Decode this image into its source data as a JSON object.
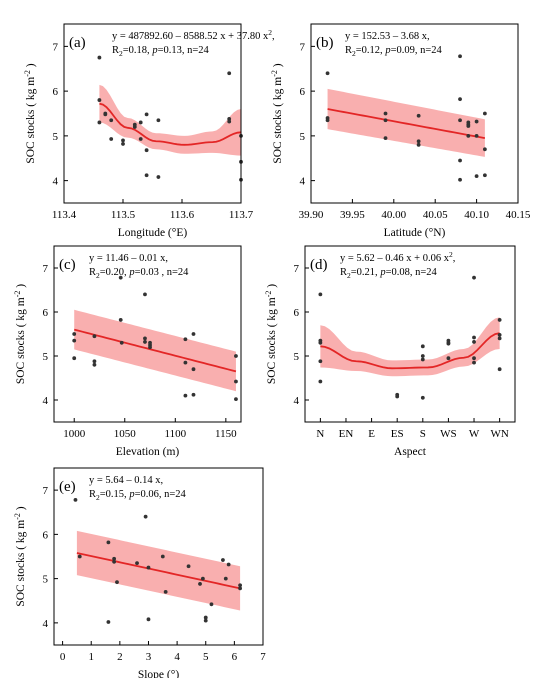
{
  "figure": {
    "ylabel_prefix": "SOC stocks",
    "ylabel_unit": "( kg m",
    "ylabel_exp": "-2",
    "ylabel_close": ")"
  },
  "chart_data": [
    {
      "type": "scatter",
      "panel_label": "(a)",
      "xlabel": "Longitude (°E)",
      "ylabel": "SOC stocks ( kg m-2 )",
      "xlim": [
        113.4,
        113.7
      ],
      "ylim": [
        3.5,
        7.5
      ],
      "xticks": [
        "113.4",
        "113.5",
        "113.6",
        "113.7"
      ],
      "yticks": [
        "4",
        "5",
        "6",
        "7"
      ],
      "equation": "y = 487892.60 – 8588.52 x + 37.80 x",
      "equation_sup": "2",
      "equation_tail": ",",
      "stats": "R2=0.18, p=0.13, n=24",
      "stats_parts": {
        "r2": "=0.18, ",
        "p": "=0.13, n=24"
      },
      "fit": {
        "kind": "quadratic",
        "xrange": [
          113.46,
          113.7
        ],
        "points_y": [
          5.72,
          5.18,
          4.88,
          4.8,
          4.86,
          5.08
        ],
        "ci_halfwidth": [
          0.42,
          0.22,
          0.18,
          0.2,
          0.24,
          0.52
        ]
      },
      "points": [
        [
          113.46,
          6.75
        ],
        [
          113.46,
          5.8
        ],
        [
          113.46,
          5.3
        ],
        [
          113.47,
          5.48
        ],
        [
          113.48,
          5.35
        ],
        [
          113.48,
          4.93
        ],
        [
          113.5,
          4.82
        ],
        [
          113.5,
          4.9
        ],
        [
          113.52,
          5.2
        ],
        [
          113.52,
          5.25
        ],
        [
          113.53,
          4.93
        ],
        [
          113.54,
          5.48
        ],
        [
          113.54,
          4.68
        ],
        [
          113.54,
          4.12
        ],
        [
          113.56,
          5.35
        ],
        [
          113.56,
          4.08
        ],
        [
          113.68,
          6.4
        ],
        [
          113.68,
          5.38
        ],
        [
          113.68,
          5.32
        ],
        [
          113.7,
          5.0
        ],
        [
          113.7,
          4.42
        ],
        [
          113.7,
          4.02
        ],
        [
          113.47,
          5.5
        ],
        [
          113.53,
          5.3
        ]
      ]
    },
    {
      "type": "scatter",
      "panel_label": "(b)",
      "xlabel": "Latitude (°N)",
      "ylabel": "SOC stocks ( kg m-2 )",
      "xlim": [
        39.9,
        40.15
      ],
      "ylim": [
        3.5,
        7.5
      ],
      "xticks": [
        "39.90",
        "39.95",
        "40.00",
        "40.05",
        "40.10",
        "40.15"
      ],
      "yticks": [
        "4",
        "5",
        "6",
        "7"
      ],
      "equation": "y = 152.53 – 3.68 x,",
      "equation_sup": "",
      "equation_tail": "",
      "stats": "R2=0.12, p=0.09, n=24",
      "stats_parts": {
        "r2": "=0.12, ",
        "p": "=0.09, n=24"
      },
      "fit": {
        "kind": "linear",
        "xrange": [
          39.92,
          40.11
        ],
        "y_start": 5.6,
        "y_end": 4.95,
        "ci_start": 0.45,
        "ci_end": 0.42
      },
      "points": [
        [
          39.92,
          6.4
        ],
        [
          39.92,
          5.4
        ],
        [
          39.92,
          5.35
        ],
        [
          39.99,
          5.5
        ],
        [
          39.99,
          5.35
        ],
        [
          39.99,
          4.95
        ],
        [
          40.03,
          5.45
        ],
        [
          40.03,
          4.88
        ],
        [
          40.03,
          4.8
        ],
        [
          40.08,
          6.78
        ],
        [
          40.08,
          5.82
        ],
        [
          40.08,
          5.35
        ],
        [
          40.08,
          4.45
        ],
        [
          40.08,
          4.02
        ],
        [
          40.09,
          5.3
        ],
        [
          40.09,
          5.25
        ],
        [
          40.09,
          5.0
        ],
        [
          40.1,
          5.32
        ],
        [
          40.1,
          4.1
        ],
        [
          40.11,
          5.5
        ],
        [
          40.11,
          4.7
        ],
        [
          40.11,
          4.12
        ],
        [
          40.09,
          5.22
        ],
        [
          40.1,
          5.0
        ]
      ]
    },
    {
      "type": "scatter",
      "panel_label": "(c)",
      "xlabel": "Elevation (m)",
      "ylabel": "SOC stocks ( kg m-2 )",
      "xlim": [
        980,
        1165
      ],
      "ylim": [
        3.5,
        7.5
      ],
      "xticks": [
        "1000",
        "1050",
        "1100",
        "1150"
      ],
      "xtick_values": [
        1000,
        1050,
        1100,
        1150
      ],
      "yticks": [
        "4",
        "5",
        "6",
        "7"
      ],
      "equation": "y = 11.46 – 0.01 x,",
      "equation_sup": "",
      "equation_tail": "",
      "stats": "R2=0.20, p=0.03 , n=24",
      "stats_parts": {
        "r2": "=0.20, ",
        "p": "=0.03 , n=24"
      },
      "fit": {
        "kind": "linear",
        "xrange": [
          1000,
          1160
        ],
        "y_start": 5.6,
        "y_end": 4.65,
        "ci_start": 0.45,
        "ci_end": 0.45
      },
      "points": [
        [
          1000,
          5.5
        ],
        [
          1000,
          5.35
        ],
        [
          1000,
          4.95
        ],
        [
          1020,
          5.45
        ],
        [
          1020,
          4.88
        ],
        [
          1020,
          4.8
        ],
        [
          1046,
          6.78
        ],
        [
          1046,
          5.82
        ],
        [
          1047,
          5.3
        ],
        [
          1070,
          6.4
        ],
        [
          1070,
          5.4
        ],
        [
          1070,
          5.32
        ],
        [
          1075,
          5.25
        ],
        [
          1075,
          5.2
        ],
        [
          1110,
          5.38
        ],
        [
          1110,
          4.85
        ],
        [
          1110,
          4.1
        ],
        [
          1118,
          5.5
        ],
        [
          1118,
          4.7
        ],
        [
          1118,
          4.12
        ],
        [
          1160,
          5.0
        ],
        [
          1160,
          4.42
        ],
        [
          1160,
          4.02
        ],
        [
          1075,
          5.3
        ]
      ]
    },
    {
      "type": "scatter",
      "panel_label": "(d)",
      "xlabel": "Aspect",
      "ylabel": "SOC stocks ( kg m-2 )",
      "categories": [
        "N",
        "EN",
        "E",
        "ES",
        "S",
        "WS",
        "W",
        "WN"
      ],
      "ylim": [
        3.5,
        7.5
      ],
      "yticks": [
        "4",
        "5",
        "6",
        "7"
      ],
      "equation": "y = 5.62 – 0.46 x + 0.06 x",
      "equation_sup": "2",
      "equation_tail": ",",
      "stats": "R2=0.21, p=0.08, n=24",
      "stats_parts": {
        "r2": "=0.21, ",
        "p": "=0.08, n=24"
      },
      "fit": {
        "kind": "quadratic",
        "xrange": [
          0,
          7
        ],
        "points_y": [
          5.22,
          4.88,
          4.72,
          4.74,
          4.96,
          5.52
        ],
        "ci_halfwidth": [
          0.48,
          0.22,
          0.18,
          0.18,
          0.2,
          0.36
        ]
      },
      "points": [
        [
          0,
          6.4
        ],
        [
          0,
          5.35
        ],
        [
          0,
          5.3
        ],
        [
          0,
          4.88
        ],
        [
          0,
          4.42
        ],
        [
          3,
          4.12
        ],
        [
          3,
          4.08
        ],
        [
          4,
          5.22
        ],
        [
          4,
          5.0
        ],
        [
          4,
          4.92
        ],
        [
          4,
          4.05
        ],
        [
          5,
          5.35
        ],
        [
          5,
          5.3
        ],
        [
          5,
          4.95
        ],
        [
          6,
          6.78
        ],
        [
          6,
          5.42
        ],
        [
          6,
          5.32
        ],
        [
          6,
          4.95
        ],
        [
          6,
          4.85
        ],
        [
          7,
          5.82
        ],
        [
          7,
          5.48
        ],
        [
          7,
          5.4
        ],
        [
          7,
          4.7
        ],
        [
          5,
          5.28
        ]
      ]
    },
    {
      "type": "scatter",
      "panel_label": "(e)",
      "xlabel": "Slope (°)",
      "ylabel": "SOC stocks ( kg m-2 )",
      "xlim": [
        -0.3,
        7
      ],
      "ylim": [
        3.5,
        7.5
      ],
      "xticks": [
        "0",
        "1",
        "2",
        "3",
        "4",
        "5",
        "6",
        "7"
      ],
      "xtick_values": [
        0,
        1,
        2,
        3,
        4,
        5,
        6,
        7
      ],
      "yticks": [
        "4",
        "5",
        "6",
        "7"
      ],
      "equation": "y = 5.64 – 0.14 x,",
      "equation_sup": "",
      "equation_tail": "",
      "stats": "R2=0.15, p=0.06, n=24",
      "stats_parts": {
        "r2": "=0.15, ",
        "p": "=0.06, n=24"
      },
      "fit": {
        "kind": "linear",
        "xrange": [
          0.5,
          6.2
        ],
        "y_start": 5.58,
        "y_end": 4.78,
        "ci_start": 0.5,
        "ci_end": 0.5
      },
      "points": [
        [
          0.45,
          6.78
        ],
        [
          0.6,
          5.5
        ],
        [
          1.6,
          5.82
        ],
        [
          1.6,
          4.02
        ],
        [
          1.8,
          5.45
        ],
        [
          1.8,
          5.38
        ],
        [
          1.9,
          4.92
        ],
        [
          2.6,
          5.35
        ],
        [
          2.9,
          6.4
        ],
        [
          3.0,
          5.25
        ],
        [
          3.0,
          4.08
        ],
        [
          3.5,
          5.5
        ],
        [
          3.6,
          4.7
        ],
        [
          4.4,
          5.28
        ],
        [
          4.8,
          4.88
        ],
        [
          4.9,
          5.0
        ],
        [
          5.0,
          4.12
        ],
        [
          5.0,
          4.05
        ],
        [
          5.2,
          4.42
        ],
        [
          5.6,
          5.42
        ],
        [
          5.8,
          5.32
        ],
        [
          6.2,
          4.85
        ],
        [
          6.2,
          4.78
        ],
        [
          5.7,
          5.0
        ]
      ]
    }
  ]
}
